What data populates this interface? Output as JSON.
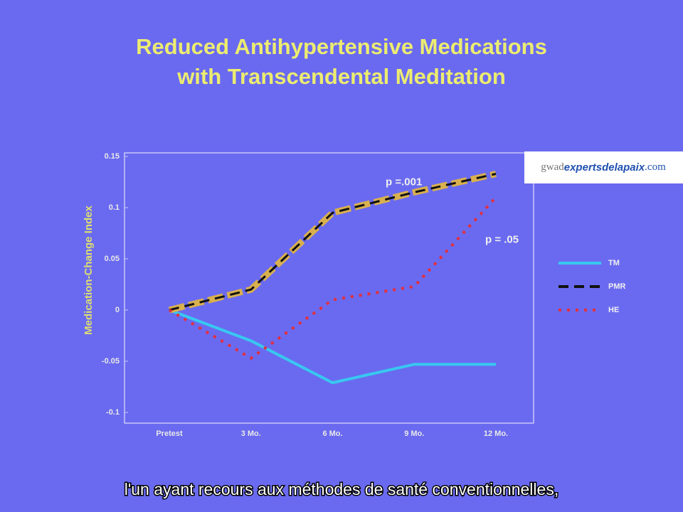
{
  "chart_data": {
    "type": "line",
    "title": [
      "Reduced Antihypertensive Medications",
      "with Transcendental Meditation"
    ],
    "y_label": "Medication-Change Index",
    "categories": [
      "Pretest",
      "3 Mo.",
      "6 Mo.",
      "9 Mo.",
      "12 Mo."
    ],
    "series": [
      {
        "name": "TM",
        "color": "#38c8f0",
        "dash": "solid",
        "values": [
          0,
          -0.03,
          -0.071,
          -0.053,
          -0.053
        ]
      },
      {
        "name": "PMR",
        "color": "#111111",
        "dash": "dashed",
        "highlight": "#d9b04e",
        "values": [
          0,
          0.02,
          0.095,
          0.115,
          0.133
        ]
      },
      {
        "name": "HE",
        "color": "#e03040",
        "dash": "dotted",
        "values": [
          0,
          -0.047,
          0.01,
          0.023,
          0.11
        ]
      }
    ],
    "ylim": [
      -0.1,
      0.15
    ],
    "yticks": [
      -0.1,
      -0.05,
      0,
      0.05,
      0.1,
      0.15
    ],
    "annotations": [
      {
        "text": "p =.001",
        "series": 1
      },
      {
        "text": "p = .05",
        "series": 2
      }
    ]
  },
  "watermark": [
    "gwad",
    "expertsdelapaix",
    ".com"
  ],
  "caption": "l'un ayant recours aux méthodes de santé conventionnelles,"
}
